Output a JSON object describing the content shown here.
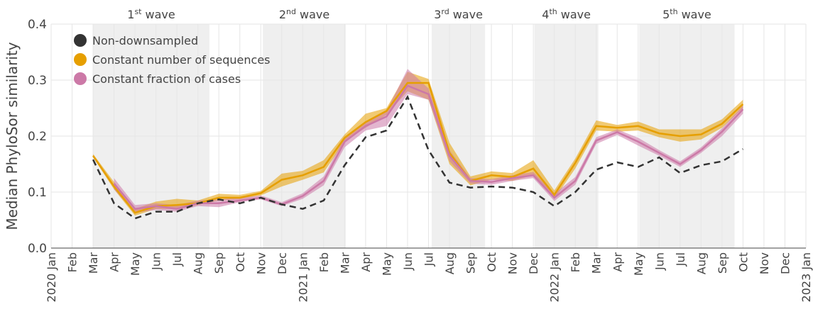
{
  "chart_data": {
    "type": "line",
    "y_label": "Median PhyloSor similarity",
    "categories": [
      "2020 Jan",
      "Feb",
      "Mar",
      "Apr",
      "May",
      "Jun",
      "Jul",
      "Aug",
      "Sep",
      "Oct",
      "Nov",
      "Dec",
      "2021 Jan",
      "Feb",
      "Mar",
      "Apr",
      "May",
      "Jun",
      "Jul",
      "Aug",
      "Sep",
      "Oct",
      "Nov",
      "Dec",
      "2022 Jan",
      "Feb",
      "Mar",
      "Apr",
      "May",
      "Jun",
      "Jul",
      "Aug",
      "Sep",
      "Oct",
      "Nov",
      "Dec",
      "2023 Jan"
    ],
    "ylim": [
      0,
      0.4
    ],
    "yticks": [
      {
        "value": 0,
        "label": "0.0"
      },
      0.1,
      0.2,
      0.3,
      0.4
    ],
    "grid": true,
    "legend": "top-left",
    "waves": [
      {
        "number": "1",
        "suffix": "st",
        "text": "wave",
        "start": 2,
        "end": 7.55
      },
      {
        "number": "2",
        "suffix": "nd",
        "text": "wave",
        "start": 10.1,
        "end": 14.05
      },
      {
        "number": "3",
        "suffix": "rd",
        "text": "wave",
        "start": 18.15,
        "end": 20.7
      },
      {
        "number": "4",
        "suffix": "th",
        "text": "wave",
        "start": 23.05,
        "end": 26.1
      },
      {
        "number": "5",
        "suffix": "th",
        "text": "wave",
        "start": 28.05,
        "end": 32.6
      }
    ],
    "series": [
      {
        "name": "Non-downsampled",
        "color": "#333333",
        "dashed": true,
        "values": [
          null,
          null,
          0.158,
          0.08,
          0.053,
          0.065,
          0.065,
          0.08,
          0.087,
          0.08,
          0.09,
          0.078,
          0.07,
          0.085,
          0.148,
          0.198,
          0.21,
          0.27,
          0.175,
          0.117,
          0.108,
          0.11,
          0.108,
          0.1,
          0.075,
          0.1,
          0.14,
          0.153,
          0.145,
          0.162,
          0.134,
          0.148,
          0.155,
          0.177,
          null,
          null,
          null
        ]
      },
      {
        "name": "Constant number of sequences",
        "color": "#e69f00",
        "dashed": false,
        "values": [
          null,
          null,
          0.165,
          0.11,
          0.063,
          0.075,
          0.077,
          0.08,
          0.09,
          0.09,
          0.098,
          0.122,
          0.13,
          0.145,
          0.197,
          0.225,
          0.245,
          0.295,
          0.295,
          0.17,
          0.12,
          0.13,
          0.127,
          0.142,
          0.095,
          0.152,
          0.218,
          0.215,
          0.218,
          0.205,
          0.2,
          0.203,
          0.222,
          0.257,
          null,
          null,
          null
        ],
        "lower": [
          null,
          null,
          0.162,
          0.105,
          0.058,
          0.07,
          0.07,
          0.077,
          0.085,
          0.087,
          0.094,
          0.11,
          0.122,
          0.135,
          0.19,
          0.215,
          0.238,
          0.28,
          0.265,
          0.15,
          0.112,
          0.122,
          0.12,
          0.13,
          0.088,
          0.142,
          0.21,
          0.208,
          0.21,
          0.198,
          0.19,
          0.194,
          0.215,
          0.25,
          null,
          null,
          null
        ],
        "upper": [
          null,
          null,
          0.168,
          0.118,
          0.07,
          0.083,
          0.088,
          0.085,
          0.097,
          0.095,
          0.102,
          0.133,
          0.138,
          0.157,
          0.203,
          0.24,
          0.25,
          0.315,
          0.302,
          0.188,
          0.128,
          0.137,
          0.134,
          0.157,
          0.103,
          0.16,
          0.228,
          0.22,
          0.226,
          0.212,
          0.212,
          0.212,
          0.23,
          0.265,
          null,
          null,
          null
        ]
      },
      {
        "name": "Constant fraction of cases",
        "color": "#cc79a7",
        "dashed": false,
        "values": [
          null,
          null,
          null,
          0.115,
          0.07,
          0.075,
          0.07,
          0.08,
          0.08,
          0.085,
          0.09,
          0.078,
          0.093,
          0.12,
          0.19,
          0.218,
          0.235,
          0.29,
          0.275,
          0.165,
          0.12,
          0.118,
          0.125,
          0.13,
          0.09,
          0.12,
          0.192,
          0.207,
          0.19,
          0.17,
          0.15,
          0.175,
          0.208,
          0.248,
          null,
          null,
          null
        ],
        "lower": [
          null,
          null,
          null,
          0.105,
          0.063,
          0.068,
          0.065,
          0.075,
          0.073,
          0.082,
          0.087,
          0.075,
          0.088,
          0.112,
          0.18,
          0.21,
          0.218,
          0.275,
          0.265,
          0.155,
          0.115,
          0.113,
          0.12,
          0.125,
          0.084,
          0.113,
          0.186,
          0.202,
          0.183,
          0.165,
          0.145,
          0.17,
          0.2,
          0.24,
          null,
          null,
          null
        ],
        "upper": [
          null,
          null,
          null,
          0.125,
          0.077,
          0.08,
          0.077,
          0.085,
          0.087,
          0.09,
          0.094,
          0.082,
          0.098,
          0.128,
          0.198,
          0.225,
          0.245,
          0.32,
          0.285,
          0.175,
          0.125,
          0.123,
          0.13,
          0.136,
          0.097,
          0.127,
          0.198,
          0.212,
          0.197,
          0.175,
          0.155,
          0.18,
          0.214,
          0.255,
          null,
          null,
          null
        ]
      }
    ]
  }
}
